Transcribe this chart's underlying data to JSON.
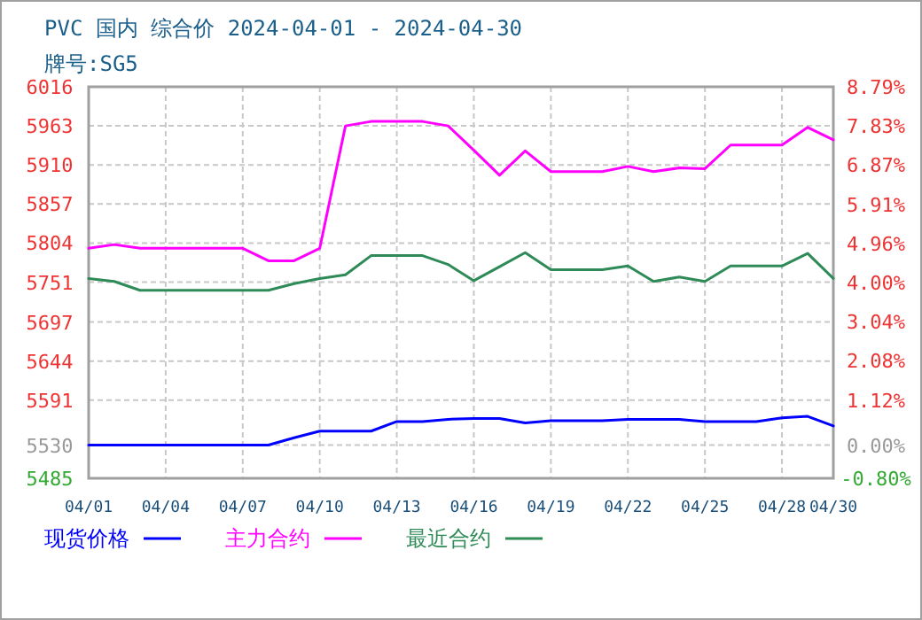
{
  "chart_data": {
    "type": "line",
    "title": "PVC 国内 综合价 2024-04-01 - 2024-04-30",
    "subtitle": "牌号:SG5",
    "x": [
      "2024-04-01",
      "2024-04-02",
      "2024-04-03",
      "2024-04-04",
      "2024-04-05",
      "2024-04-06",
      "2024-04-07",
      "2024-04-08",
      "2024-04-09",
      "2024-04-10",
      "2024-04-11",
      "2024-04-12",
      "2024-04-13",
      "2024-04-14",
      "2024-04-15",
      "2024-04-16",
      "2024-04-17",
      "2024-04-18",
      "2024-04-19",
      "2024-04-20",
      "2024-04-21",
      "2024-04-22",
      "2024-04-23",
      "2024-04-24",
      "2024-04-25",
      "2024-04-26",
      "2024-04-27",
      "2024-04-28",
      "2024-04-29",
      "2024-04-30"
    ],
    "series": [
      {
        "name": "现货价格",
        "color": "#0000ff",
        "values": [
          5530,
          5530,
          5530,
          5530,
          5530,
          5530,
          5530,
          5530,
          5540,
          5549,
          5549,
          5549,
          5562,
          5562,
          5565,
          5566,
          5566,
          5560,
          5563,
          5563,
          5563,
          5565,
          5565,
          5565,
          5562,
          5562,
          5562,
          5567,
          5569,
          5556
        ]
      },
      {
        "name": "主力合约",
        "color": "#ff00ff",
        "values": [
          5797,
          5802,
          5797,
          5797,
          5797,
          5797,
          5797,
          5780,
          5780,
          5797,
          5963,
          5969,
          5969,
          5969,
          5963,
          5930,
          5896,
          5929,
          5901,
          5901,
          5901,
          5908,
          5901,
          5906,
          5905,
          5937,
          5937,
          5937,
          5961,
          5944
        ]
      },
      {
        "name": "最近合约",
        "color": "#2e8b57",
        "values": [
          5756,
          5752,
          5740,
          5740,
          5740,
          5740,
          5740,
          5740,
          5749,
          5756,
          5761,
          5787,
          5787,
          5787,
          5775,
          5753,
          5772,
          5791,
          5768,
          5768,
          5768,
          5773,
          5752,
          5758,
          5752,
          5773,
          5773,
          5773,
          5790,
          5756
        ]
      }
    ],
    "xlim": [
      "2024-04-01",
      "2024-04-30"
    ],
    "xticks": [
      {
        "value": "2024-04-01",
        "label": "04/01"
      },
      {
        "value": "2024-04-04",
        "label": "04/04"
      },
      {
        "value": "2024-04-07",
        "label": "04/07"
      },
      {
        "value": "2024-04-10",
        "label": "04/10"
      },
      {
        "value": "2024-04-13",
        "label": "04/13"
      },
      {
        "value": "2024-04-16",
        "label": "04/16"
      },
      {
        "value": "2024-04-19",
        "label": "04/19"
      },
      {
        "value": "2024-04-22",
        "label": "04/22"
      },
      {
        "value": "2024-04-25",
        "label": "04/25"
      },
      {
        "value": "2024-04-28",
        "label": "04/28"
      },
      {
        "value": "2024-04-30",
        "label": "04/30"
      }
    ],
    "ylim": [
      5485,
      6016
    ],
    "yticks": [
      5485,
      5530,
      5591,
      5644,
      5697,
      5751,
      5804,
      5857,
      5910,
      5963,
      6016
    ],
    "y2lim": [
      -0.8,
      8.79
    ],
    "y2ticks": [
      {
        "value": -0.8,
        "label": "-0.80%"
      },
      {
        "value": 0,
        "label": "0.00%"
      },
      {
        "value": 1.12,
        "label": "1.12%"
      },
      {
        "value": 2.08,
        "label": "2.08%"
      },
      {
        "value": 3.04,
        "label": "3.04%"
      },
      {
        "value": 4.0,
        "label": "4.00%"
      },
      {
        "value": 4.96,
        "label": "4.96%"
      },
      {
        "value": 5.91,
        "label": "5.91%"
      },
      {
        "value": 6.87,
        "label": "6.87%"
      },
      {
        "value": 7.83,
        "label": "7.83%"
      },
      {
        "value": 8.79,
        "label": "8.79%"
      }
    ],
    "grid": true,
    "legend": "bottom",
    "marker": "none",
    "line_style": "solid"
  }
}
